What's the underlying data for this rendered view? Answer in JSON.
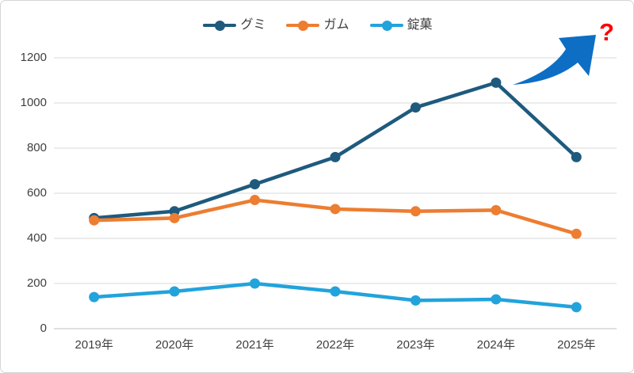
{
  "chart_data": {
    "type": "line",
    "title": "",
    "categories": [
      "2019年",
      "2020年",
      "2021年",
      "2022年",
      "2023年",
      "2024年",
      "2025年"
    ],
    "series": [
      {
        "name": "グミ",
        "color": "#1e5a7d",
        "values": [
          490,
          520,
          640,
          760,
          980,
          1090,
          760
        ]
      },
      {
        "name": "ガム",
        "color": "#ed7d31",
        "values": [
          480,
          490,
          570,
          530,
          520,
          525,
          420
        ]
      },
      {
        "name": "錠菓",
        "color": "#22a3dc",
        "values": [
          140,
          165,
          200,
          165,
          125,
          130,
          95
        ]
      }
    ],
    "y_ticks": [
      0,
      200,
      400,
      600,
      800,
      1000,
      1200
    ],
    "ylim": [
      0,
      1200
    ],
    "xlabel": "",
    "ylabel": "",
    "grid": "horizontal",
    "legend_position": "top-center"
  },
  "annotation": {
    "question_mark": "?",
    "question_mark_color": "#ff0000",
    "arrow_color": "#0d6ec4"
  },
  "style": {
    "gridline_color": "#d9d9d9",
    "axis_line_color": "#bfbfbf",
    "label_color": "#404040"
  }
}
